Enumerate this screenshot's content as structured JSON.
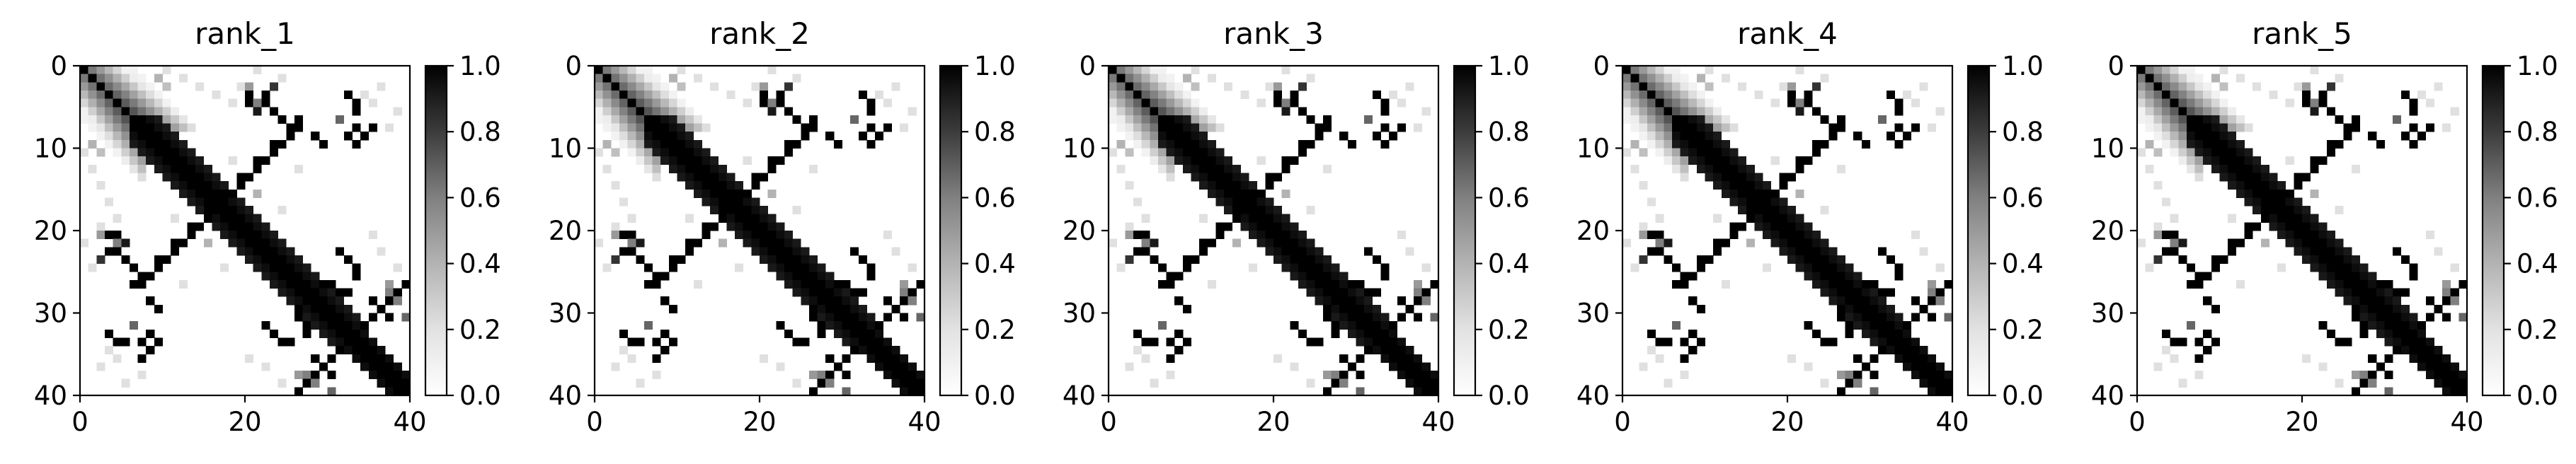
{
  "chart_data": {
    "type": "heatmap",
    "colormap": "Greys",
    "vmin": 0.0,
    "vmax": 1.0,
    "size": 40,
    "x_ticks": [
      0,
      20,
      40
    ],
    "y_ticks": [
      0,
      10,
      20,
      30,
      40
    ],
    "colorbar_ticks": [
      "0.0",
      "0.2",
      "0.4",
      "0.6",
      "0.8",
      "1.0"
    ],
    "panels": [
      {
        "title": "rank_1"
      },
      {
        "title": "rank_2"
      },
      {
        "title": "rank_3"
      },
      {
        "title": "rank_4"
      },
      {
        "title": "rank_5"
      }
    ]
  }
}
